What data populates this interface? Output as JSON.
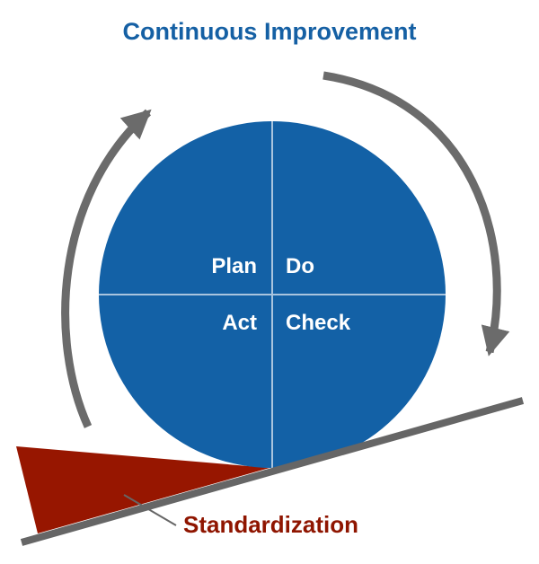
{
  "title": "Continuous Improvement",
  "quadrants": {
    "plan": "Plan",
    "do": "Do",
    "act": "Act",
    "check": "Check"
  },
  "wedge_label": "Standardization",
  "colors": {
    "title": "#1560a4",
    "circle": "#1361a6",
    "divider": "#a9c4de",
    "arrow": "#6b6b6b",
    "wedge": "#971600",
    "slope": "#666666",
    "wedge_label": "#8f1500"
  }
}
